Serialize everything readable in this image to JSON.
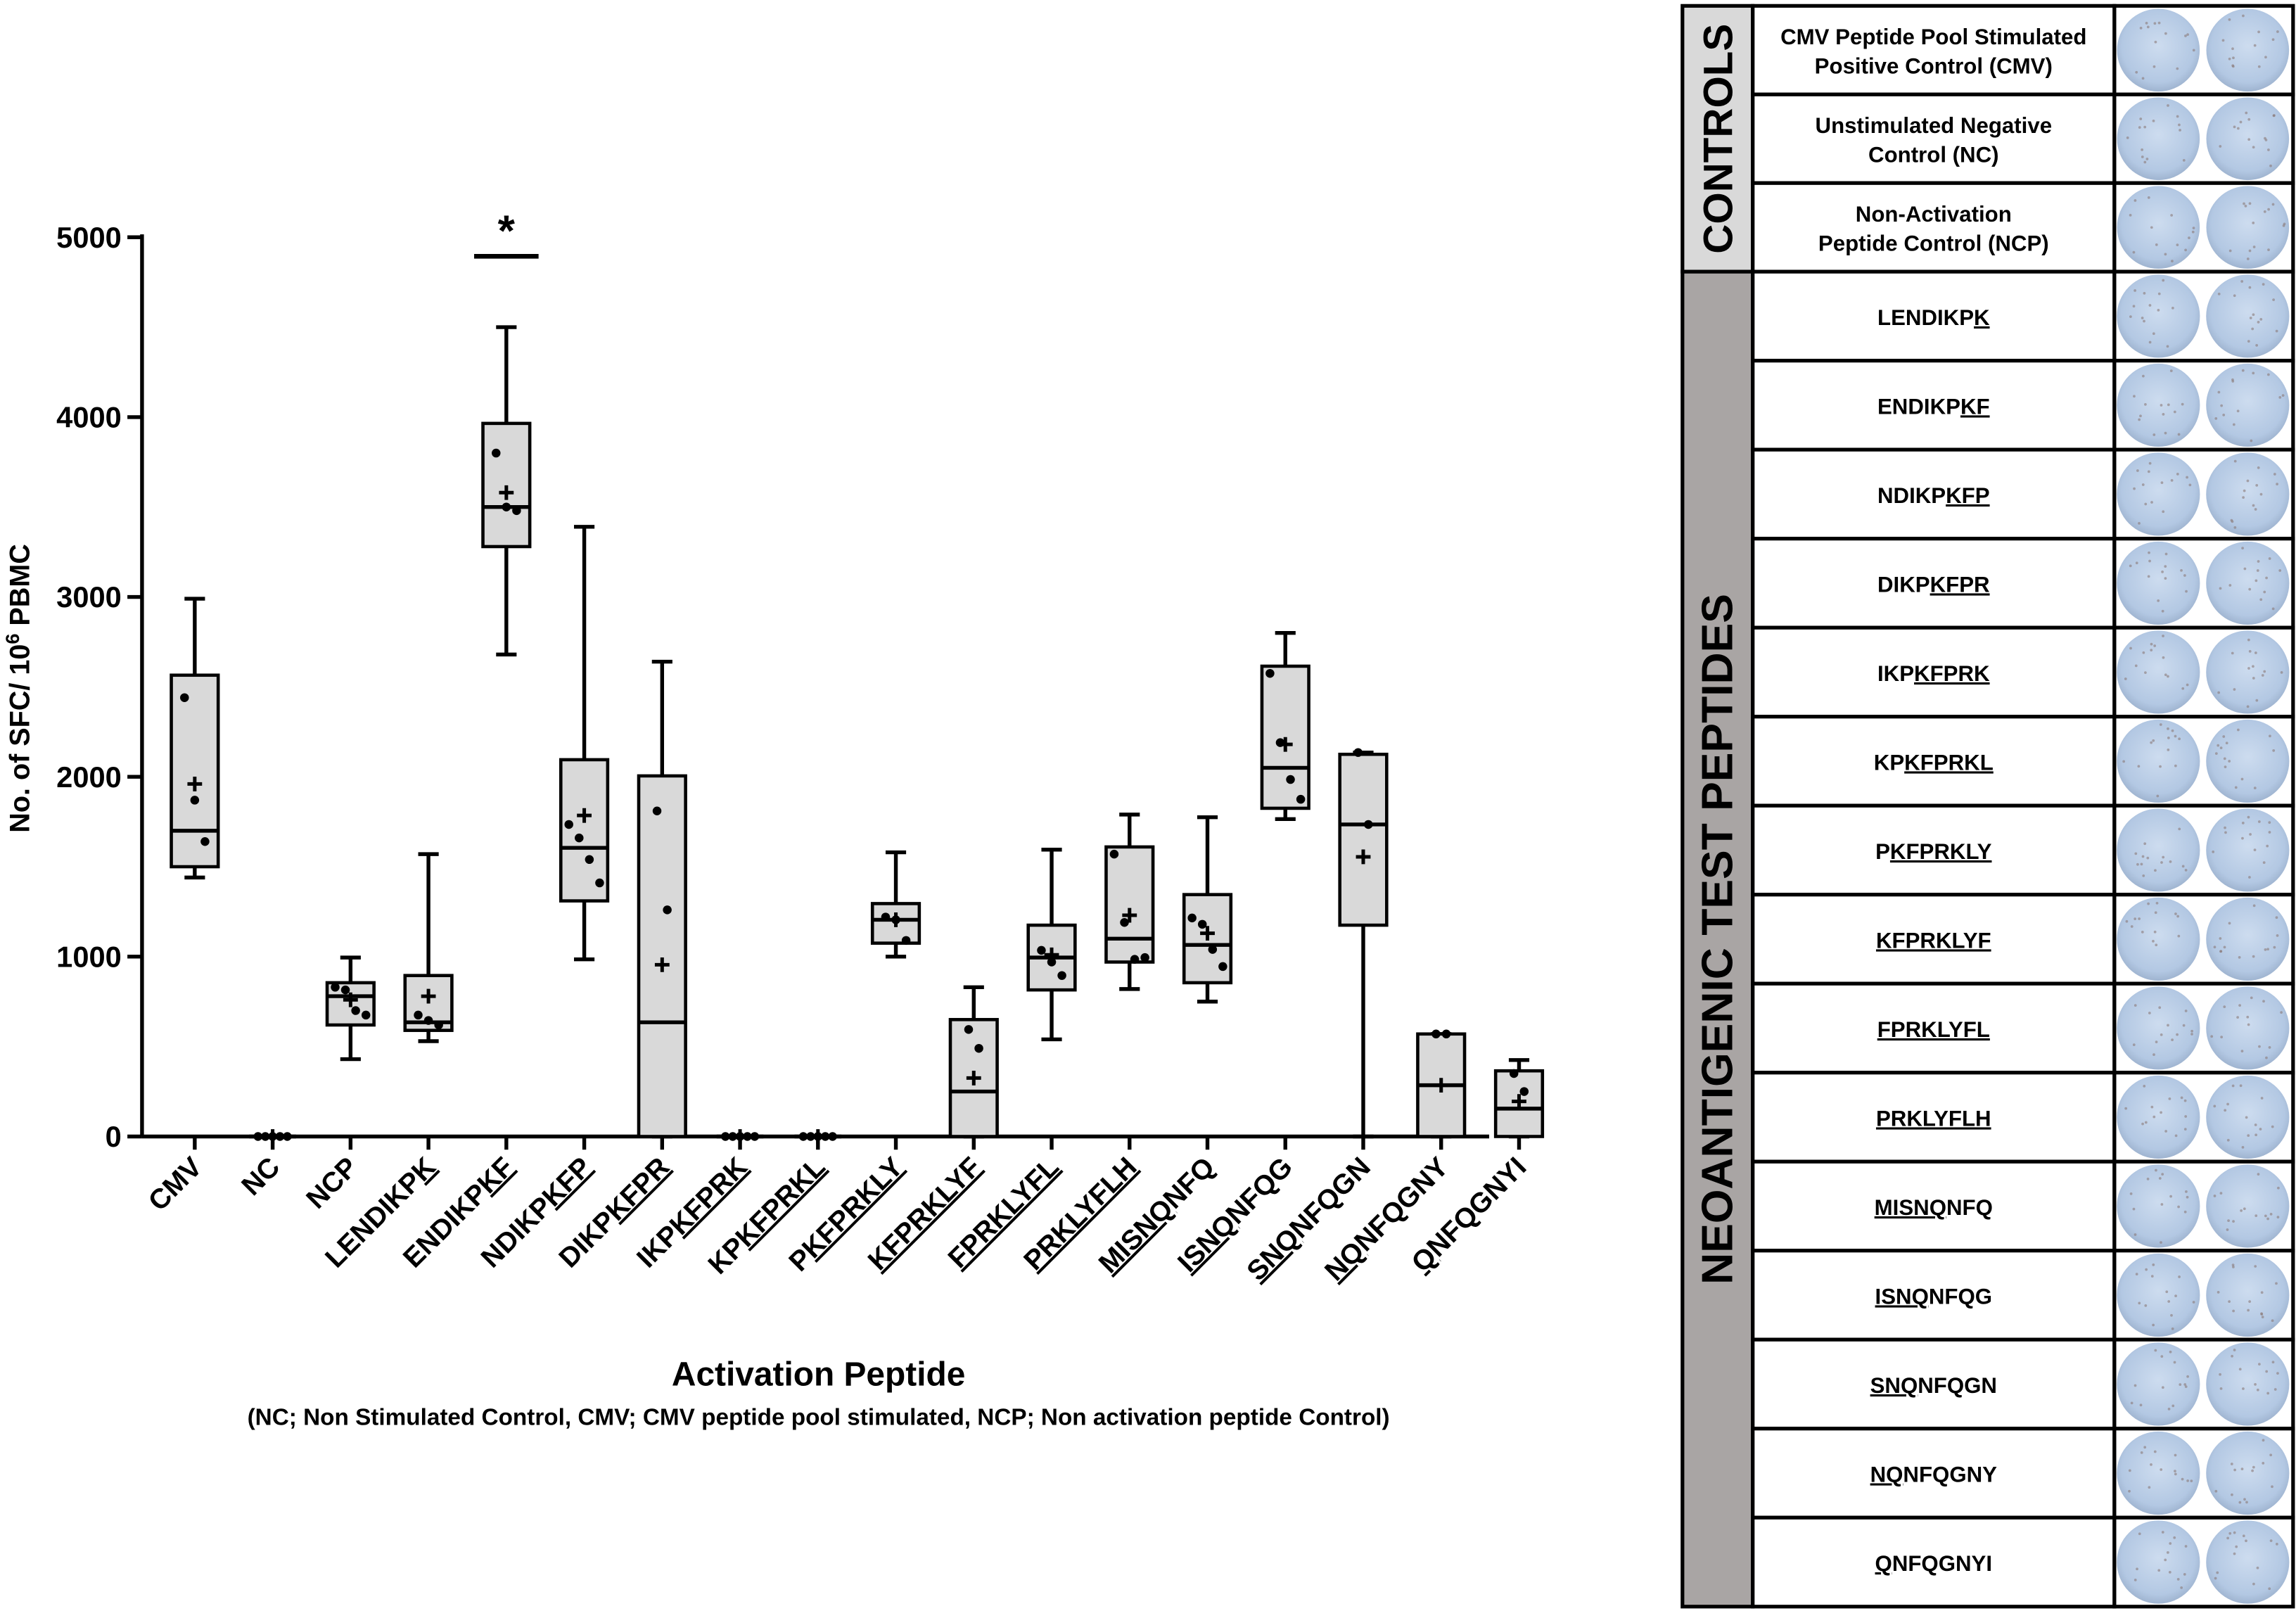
{
  "chart_data": {
    "type": "box",
    "y_label": [
      "No. of SFC/ 10",
      "6",
      "PBMC"
    ],
    "x_label": "Activation Peptide",
    "x_note": "(NC; Non Stimulated Control, CMV; CMV peptide pool stimulated, NCP; Non activation peptide Control)",
    "ylim": [
      0,
      5000
    ],
    "yticks": [
      0,
      1000,
      2000,
      3000,
      4000,
      5000
    ],
    "color": "#d9d9d9",
    "annotations": [
      {
        "text": "*",
        "category": "ENDIKPKF"
      }
    ],
    "categories": [
      [
        {
          "text": "CMV"
        }
      ],
      [
        {
          "text": "NC"
        }
      ],
      [
        {
          "text": "NCP"
        }
      ],
      [
        {
          "text": "LENDIKP"
        },
        {
          "text": "K",
          "underline": true
        }
      ],
      [
        {
          "text": "ENDIKP"
        },
        {
          "text": "KF",
          "underline": true
        }
      ],
      [
        {
          "text": "NDIKP"
        },
        {
          "text": "KFP",
          "underline": true
        }
      ],
      [
        {
          "text": "DIKP"
        },
        {
          "text": "KFPR",
          "underline": true
        }
      ],
      [
        {
          "text": "IKP"
        },
        {
          "text": "KFPRK",
          "underline": true
        }
      ],
      [
        {
          "text": "KP"
        },
        {
          "text": "KFPRKL",
          "underline": true
        }
      ],
      [
        {
          "text": "P"
        },
        {
          "text": "KFPRKLY",
          "underline": true
        }
      ],
      [
        {
          "text": "KFPRKLYF",
          "underline": true
        }
      ],
      [
        {
          "text": "FPRKLYFL",
          "underline": true
        }
      ],
      [
        {
          "text": "PRKLYFLH",
          "underline": true
        }
      ],
      [
        {
          "text": "MISNQ",
          "underline": true
        },
        {
          "text": "NFQ"
        }
      ],
      [
        {
          "text": "ISNQ",
          "underline": true
        },
        {
          "text": "NFQG"
        }
      ],
      [
        {
          "text": "SNQ",
          "underline": true
        },
        {
          "text": "NFQGN"
        }
      ],
      [
        {
          "text": "NQ",
          "underline": true
        },
        {
          "text": "NFQGNY"
        }
      ],
      [
        {
          "text": "Q",
          "underline": true
        },
        {
          "text": "NFQGNYI"
        }
      ]
    ],
    "boxes": [
      {
        "min": 1440,
        "q1": 1500,
        "median": 1700,
        "q3": 2565,
        "max": 2990,
        "mean": 1960,
        "points": [
          2440,
          1870,
          1640
        ]
      },
      {
        "min": 0,
        "q1": 0,
        "median": 0,
        "q3": 0,
        "max": 0,
        "mean": 0,
        "points": [
          0,
          0,
          0,
          0,
          0
        ]
      },
      {
        "min": 430,
        "q1": 620,
        "median": 780,
        "q3": 855,
        "max": 995,
        "mean": 760,
        "points": [
          830,
          815,
          700,
          675
        ]
      },
      {
        "min": 530,
        "q1": 590,
        "median": 635,
        "q3": 895,
        "max": 1570,
        "mean": 780,
        "points": [
          675,
          645,
          620
        ]
      },
      {
        "min": 2680,
        "q1": 3280,
        "median": 3500,
        "q3": 3965,
        "max": 4500,
        "mean": 3580,
        "points": [
          3800,
          3500,
          3480
        ]
      },
      {
        "min": 985,
        "q1": 1310,
        "median": 1605,
        "q3": 2095,
        "max": 3390,
        "mean": 1785,
        "points": [
          1735,
          1660,
          1540,
          1410
        ]
      },
      {
        "min": 0,
        "q1": 0,
        "median": 635,
        "q3": 2005,
        "max": 2640,
        "mean": 955,
        "points": [
          1810,
          1260
        ]
      },
      {
        "min": 0,
        "q1": 0,
        "median": 0,
        "q3": 0,
        "max": 0,
        "mean": 0,
        "points": [
          0,
          0,
          0,
          0,
          0
        ]
      },
      {
        "min": 0,
        "q1": 0,
        "median": 0,
        "q3": 0,
        "max": 0,
        "mean": 0,
        "points": [
          0,
          0,
          0,
          0,
          0
        ]
      },
      {
        "min": 1000,
        "q1": 1075,
        "median": 1205,
        "q3": 1295,
        "max": 1580,
        "mean": 1205,
        "points": [
          1220,
          1205,
          1090
        ]
      },
      {
        "min": 0,
        "q1": 0,
        "median": 250,
        "q3": 650,
        "max": 830,
        "mean": 325,
        "points": [
          595,
          490
        ]
      },
      {
        "min": 540,
        "q1": 815,
        "median": 995,
        "q3": 1175,
        "max": 1595,
        "mean": 1010,
        "points": [
          1035,
          970,
          895
        ]
      },
      {
        "min": 820,
        "q1": 970,
        "median": 1100,
        "q3": 1610,
        "max": 1790,
        "mean": 1230,
        "points": [
          1570,
          1190,
          985,
          995
        ]
      },
      {
        "min": 750,
        "q1": 855,
        "median": 1065,
        "q3": 1345,
        "max": 1775,
        "mean": 1130,
        "points": [
          1215,
          1180,
          1040,
          945
        ]
      },
      {
        "min": 1765,
        "q1": 1825,
        "median": 2050,
        "q3": 2615,
        "max": 2800,
        "mean": 2180,
        "points": [
          2575,
          2190,
          1985,
          1875
        ]
      },
      {
        "min": 0,
        "q1": 1175,
        "median": 1735,
        "q3": 2125,
        "max": 2135,
        "mean": 1555,
        "points": [
          2135,
          1735
        ]
      },
      {
        "min": 0,
        "q1": 0,
        "median": 285,
        "q3": 570,
        "max": 570,
        "mean": 285,
        "points": [
          570,
          570
        ]
      },
      {
        "min": 0,
        "q1": 0,
        "median": 155,
        "q3": 365,
        "max": 425,
        "mean": 195,
        "points": [
          350,
          250
        ]
      }
    ]
  },
  "table": {
    "groups": [
      {
        "label": "CONTROLS",
        "color": "#d9d9d9",
        "rows": [
          {
            "lines": [
              [
                {
                  "text": "CMV Peptide Pool Stimulated"
                }
              ],
              [
                {
                  "text": "Positive Control (CMV)"
                }
              ]
            ]
          },
          {
            "lines": [
              [
                {
                  "text": "Unstimulated Negative"
                }
              ],
              [
                {
                  "text": "Control (NC)"
                }
              ]
            ]
          },
          {
            "lines": [
              [
                {
                  "text": "Non-Activation"
                }
              ],
              [
                {
                  "text": "Peptide Control (NCP)"
                }
              ]
            ]
          }
        ]
      },
      {
        "label": "NEOANTIGENIC TEST PEPTIDES",
        "color": "#a9a5a4",
        "rows": [
          {
            "lines": [
              [
                {
                  "text": "LENDIKP"
                },
                {
                  "text": "K",
                  "underline": true
                }
              ]
            ]
          },
          {
            "lines": [
              [
                {
                  "text": "ENDIKP"
                },
                {
                  "text": "KF",
                  "underline": true
                }
              ]
            ]
          },
          {
            "lines": [
              [
                {
                  "text": "NDIKP"
                },
                {
                  "text": "KFP",
                  "underline": true
                }
              ]
            ]
          },
          {
            "lines": [
              [
                {
                  "text": "DIKP"
                },
                {
                  "text": "KFPR",
                  "underline": true
                }
              ]
            ]
          },
          {
            "lines": [
              [
                {
                  "text": "IKP"
                },
                {
                  "text": "KFPRK",
                  "underline": true
                }
              ]
            ]
          },
          {
            "lines": [
              [
                {
                  "text": "KP"
                },
                {
                  "text": "KFPRKL",
                  "underline": true
                }
              ]
            ]
          },
          {
            "lines": [
              [
                {
                  "text": "P"
                },
                {
                  "text": "KFPRKLY",
                  "underline": true
                }
              ]
            ]
          },
          {
            "lines": [
              [
                {
                  "text": "KFPRKLYF",
                  "underline": true
                }
              ]
            ]
          },
          {
            "lines": [
              [
                {
                  "text": "FPRKLYFL",
                  "underline": true
                }
              ]
            ]
          },
          {
            "lines": [
              [
                {
                  "text": "PRKLYFLH",
                  "underline": true
                }
              ]
            ]
          },
          {
            "lines": [
              [
                {
                  "text": "MISNQ",
                  "underline": true
                },
                {
                  "text": "NFQ"
                }
              ]
            ]
          },
          {
            "lines": [
              [
                {
                  "text": "ISNQ",
                  "underline": true
                },
                {
                  "text": "NFQG"
                }
              ]
            ]
          },
          {
            "lines": [
              [
                {
                  "text": "SNQ",
                  "underline": true
                },
                {
                  "text": "NFQGN"
                }
              ]
            ]
          },
          {
            "lines": [
              [
                {
                  "text": "NQ",
                  "underline": true
                },
                {
                  "text": "NFQGNY"
                }
              ]
            ]
          },
          {
            "lines": [
              [
                {
                  "text": "Q",
                  "underline": true
                },
                {
                  "text": "NFQGNYI"
                }
              ]
            ]
          }
        ]
      }
    ]
  }
}
